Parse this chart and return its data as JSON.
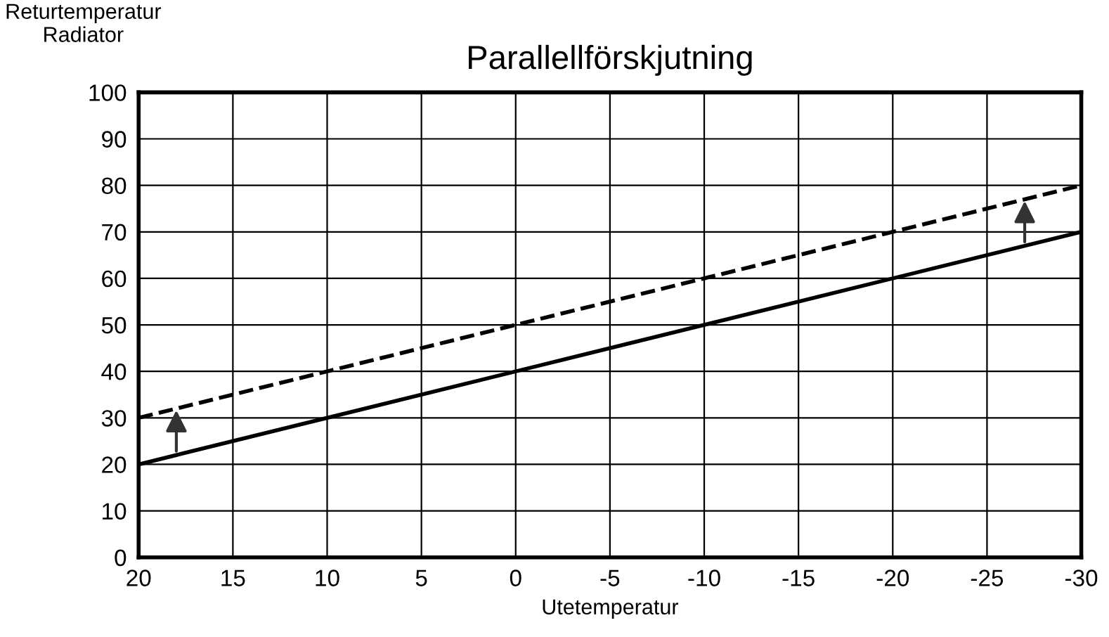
{
  "chart_data": {
    "type": "line",
    "title": "Parallellförskjutning",
    "xlabel": "Utetemperatur",
    "ylabel": "Returtemperatur\nRadiator",
    "xlim": [
      20,
      -30
    ],
    "xticks": [
      20,
      15,
      10,
      5,
      0,
      -5,
      -10,
      -15,
      -20,
      -25,
      -30
    ],
    "ylim": [
      0,
      100
    ],
    "yticks": [
      0,
      10,
      20,
      30,
      40,
      50,
      60,
      70,
      80,
      90,
      100
    ],
    "grid": true,
    "legend": false,
    "marker": "none",
    "series": [
      {
        "color": "#000000",
        "line_style": "solid",
        "x": [
          20,
          18,
          -27,
          -30
        ],
        "values": [
          20,
          22,
          67,
          70
        ]
      },
      {
        "color": "#000000",
        "line_style": "dashed",
        "x": [
          20,
          18,
          -27,
          -30
        ],
        "values": [
          30,
          32,
          77,
          80
        ]
      }
    ]
  }
}
